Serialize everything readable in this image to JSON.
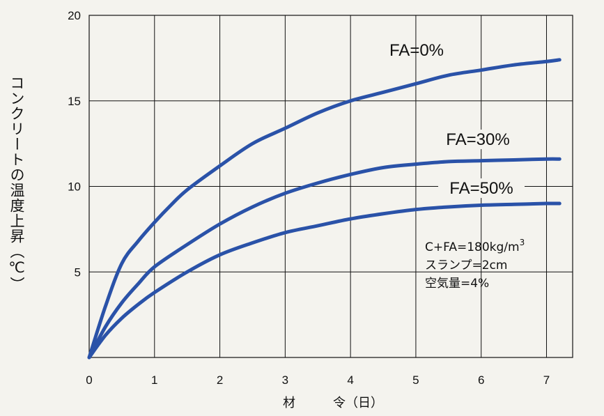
{
  "chart_data": {
    "type": "line",
    "title": "",
    "xlabel": "材　　　令（日）",
    "ylabel": "コンクリートの温度上昇（℃）",
    "xlim": [
      0,
      7.4
    ],
    "ylim": [
      0,
      20
    ],
    "xticks": [
      "0",
      "1",
      "2",
      "3",
      "4",
      "5",
      "6",
      "7"
    ],
    "yticks": [
      "5",
      "10",
      "15",
      "20"
    ],
    "grid": true,
    "line_color": "#2a52a8",
    "series": [
      {
        "name": "FA=0%",
        "x": [
          0,
          0.25,
          0.5,
          0.75,
          1,
          1.25,
          1.5,
          2,
          2.5,
          3,
          3.5,
          4,
          4.5,
          5,
          5.5,
          6,
          6.5,
          7,
          7.2
        ],
        "values": [
          0,
          3.0,
          5.5,
          6.8,
          7.9,
          8.9,
          9.8,
          11.2,
          12.5,
          13.4,
          14.3,
          15.0,
          15.5,
          16.0,
          16.5,
          16.8,
          17.1,
          17.3,
          17.4
        ]
      },
      {
        "name": "FA=30%",
        "x": [
          0,
          0.25,
          0.5,
          0.75,
          1,
          1.5,
          2,
          2.5,
          3,
          3.5,
          4,
          4.5,
          5,
          5.5,
          6,
          6.5,
          7,
          7.2
        ],
        "values": [
          0,
          1.8,
          3.2,
          4.3,
          5.3,
          6.6,
          7.8,
          8.8,
          9.6,
          10.2,
          10.7,
          11.1,
          11.3,
          11.45,
          11.5,
          11.55,
          11.6,
          11.6
        ]
      },
      {
        "name": "FA=50%",
        "x": [
          0,
          0.25,
          0.5,
          0.75,
          1,
          1.5,
          2,
          2.5,
          3,
          3.5,
          4,
          4.5,
          5,
          5.5,
          6,
          6.5,
          7,
          7.2
        ],
        "values": [
          0,
          1.3,
          2.3,
          3.1,
          3.8,
          5.0,
          6.0,
          6.7,
          7.3,
          7.7,
          8.1,
          8.4,
          8.65,
          8.8,
          8.9,
          8.95,
          9.0,
          9.0
        ]
      }
    ],
    "annotation_lines": [
      "C+FA=180kg/m",
      "スランプ=2cm",
      "空気量=4%"
    ],
    "annotation_superscript": "3"
  }
}
